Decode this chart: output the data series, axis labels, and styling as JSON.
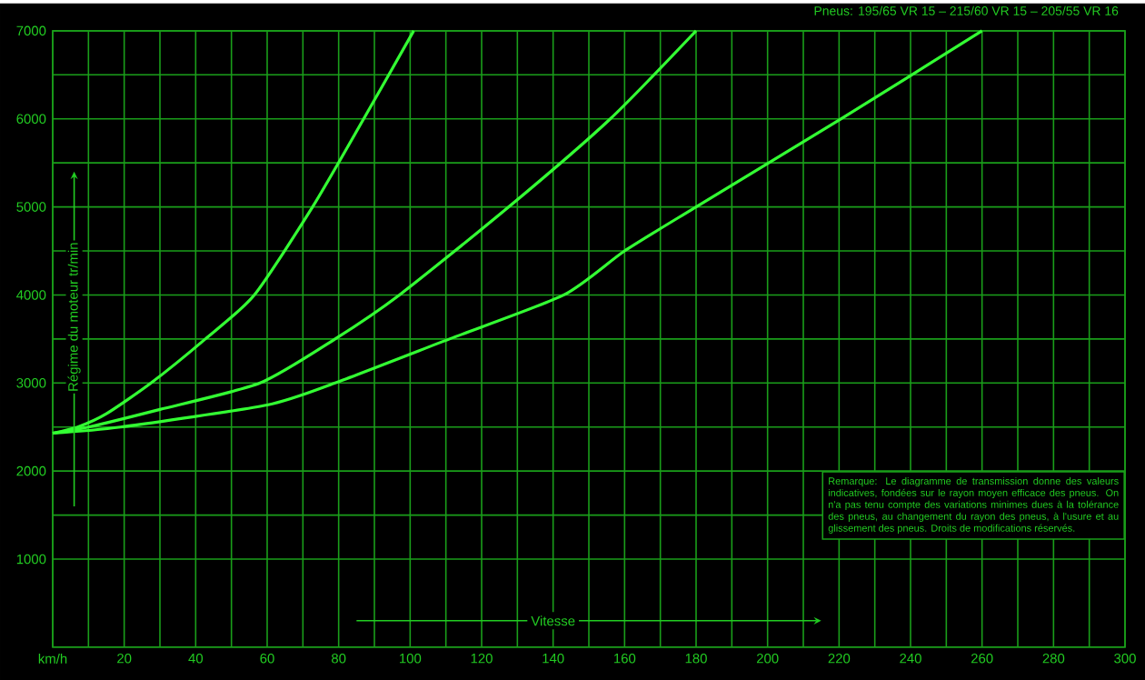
{
  "chart_data": {
    "type": "line",
    "title": "Pneus: 195/65 VR 15 – 215/60 VR 15 – 205/55 VR 16",
    "xlabel": "Vitesse",
    "ylabel": "Régime du moteur tr/min",
    "annotations": [
      "Remarque: Le diagramme de transmission donne des valeurs indicatives, fondées sur le rayon moyen efficace des pneus. On n'a pas tenu compte des variations minimes dues à la tolérance des pneus, au changement du rayon des pneus, à l'usure et au glissement des pneus. Droits de modifications réservés."
    ],
    "xlim": [
      0,
      300
    ],
    "ylim": [
      0,
      7000
    ],
    "xticks": [
      {
        "value": 0,
        "label": "km/h"
      },
      20,
      40,
      60,
      80,
      100,
      120,
      140,
      160,
      180,
      200,
      220,
      240,
      260,
      280,
      300
    ],
    "yticks": [
      1000,
      2000,
      3000,
      4000,
      5000,
      6000,
      7000
    ],
    "grid": true,
    "marker": "none",
    "line_style": "solid",
    "series": [
      {
        "color": "#33ff33",
        "x": [
          0,
          7,
          15,
          27.5,
          42.7,
          56.4,
          72.7,
          87,
          101
        ],
        "values": [
          2430,
          2500,
          2650,
          3000,
          3500,
          4000,
          5000,
          6000,
          7000
        ]
      },
      {
        "color": "#33ff33",
        "x": [
          0,
          10,
          30,
          58,
          79,
          97,
          127.6,
          156,
          180
        ],
        "values": [
          2430,
          2500,
          2700,
          3000,
          3500,
          4000,
          5000,
          6000,
          7000
        ]
      },
      {
        "color": "#33ff33",
        "x": [
          0,
          19,
          60,
          79,
          111,
          143,
          160,
          180,
          220.6,
          260
        ],
        "values": [
          2430,
          2500,
          2750,
          3000,
          3500,
          4000,
          4500,
          5000,
          6000,
          7000
        ]
      }
    ]
  }
}
